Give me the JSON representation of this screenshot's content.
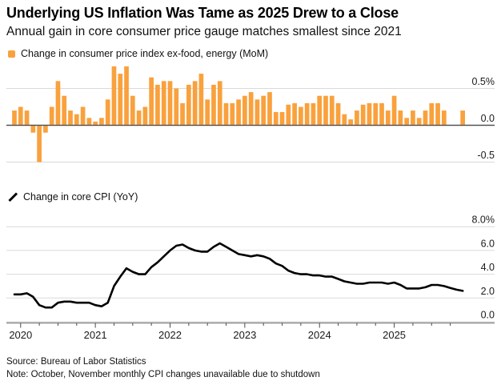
{
  "header": {
    "title": "Underlying US Inflation Was Tame as 2025 Drew to a Close",
    "subtitle": "Annual gain in core consumer price gauge matches smallest since 2021"
  },
  "legend_top": {
    "label": "Change in consumer price index ex-food, energy (MoM)"
  },
  "legend_bottom": {
    "label": "Change in core CPI (YoY)"
  },
  "footer": {
    "source": "Source: Bureau of Labor Statistics",
    "note": "Note: October, November monthly CPI changes unavailable due to shutdown"
  },
  "colors": {
    "bar": "#F9A13D",
    "line": "#000000",
    "grid": "#D9D9D9",
    "zero_line": "#4D4D4D",
    "axis_line": "#8C8C8C",
    "tick": "#4D4D4D",
    "label_text": "#1A1A1A"
  },
  "x_axis": {
    "year_labels": [
      "2020",
      "2021",
      "2022",
      "2023",
      "2024",
      "2025"
    ],
    "months_start": "2019-12",
    "months_end": "2025-12",
    "month_count": 73,
    "minor_tick_interval_months": 3
  },
  "chart_data": [
    {
      "type": "bar",
      "title": "Change in consumer price index ex-food, energy (MoM)",
      "unit": "percent, month-over-month",
      "x_start": "2019-12",
      "x_end": "2025-12",
      "missing_months": [
        "2025-10",
        "2025-11"
      ],
      "ytick_values": [
        0.5,
        0,
        -0.5
      ],
      "ytick_labels": [
        "0.5%",
        "0.0",
        "-0.5"
      ],
      "ylim": [
        -0.6,
        0.85
      ],
      "grid": true,
      "values": [
        0.2,
        0.25,
        0.2,
        -0.1,
        -0.5,
        -0.1,
        0.25,
        0.6,
        0.4,
        0.2,
        0.15,
        0.25,
        0.1,
        0.05,
        0.1,
        0.35,
        0.8,
        0.7,
        0.8,
        0.4,
        0.2,
        0.25,
        0.65,
        0.55,
        0.6,
        0.6,
        0.5,
        0.3,
        0.55,
        0.6,
        0.7,
        0.35,
        0.55,
        0.6,
        0.3,
        0.3,
        0.35,
        0.4,
        0.45,
        0.35,
        0.4,
        0.45,
        0.18,
        0.18,
        0.28,
        0.3,
        0.25,
        0.3,
        0.3,
        0.4,
        0.4,
        0.4,
        0.3,
        0.15,
        0.08,
        0.2,
        0.28,
        0.3,
        0.3,
        0.3,
        0.2,
        0.4,
        0.2,
        0.1,
        0.2,
        0.1,
        0.2,
        0.3,
        0.3,
        0.2,
        null,
        null,
        0.2
      ]
    },
    {
      "type": "line",
      "title": "Change in core CPI (YoY)",
      "unit": "percent, year-over-year",
      "x_start": "2019-12",
      "x_end": "2025-12",
      "ytick_values": [
        8,
        6,
        4,
        2,
        0
      ],
      "ytick_labels": [
        "8.0%",
        "6.0",
        "4.0",
        "2.0",
        "0.0"
      ],
      "ylim": [
        0,
        8.5
      ],
      "grid": true,
      "values": [
        2.3,
        2.3,
        2.4,
        2.1,
        1.4,
        1.2,
        1.2,
        1.6,
        1.7,
        1.7,
        1.6,
        1.6,
        1.6,
        1.4,
        1.3,
        1.6,
        3.0,
        3.8,
        4.5,
        4.2,
        4.0,
        4.0,
        4.6,
        5.0,
        5.5,
        6.0,
        6.4,
        6.5,
        6.2,
        6.0,
        5.9,
        5.9,
        6.3,
        6.6,
        6.3,
        6.0,
        5.7,
        5.6,
        5.5,
        5.6,
        5.5,
        5.3,
        4.9,
        4.7,
        4.3,
        4.1,
        4.0,
        4.0,
        3.9,
        3.9,
        3.8,
        3.8,
        3.6,
        3.4,
        3.3,
        3.2,
        3.2,
        3.3,
        3.3,
        3.3,
        3.2,
        3.3,
        3.1,
        2.8,
        2.8,
        2.8,
        2.9,
        3.1,
        3.1,
        3.0,
        2.85,
        2.7,
        2.6
      ]
    }
  ]
}
